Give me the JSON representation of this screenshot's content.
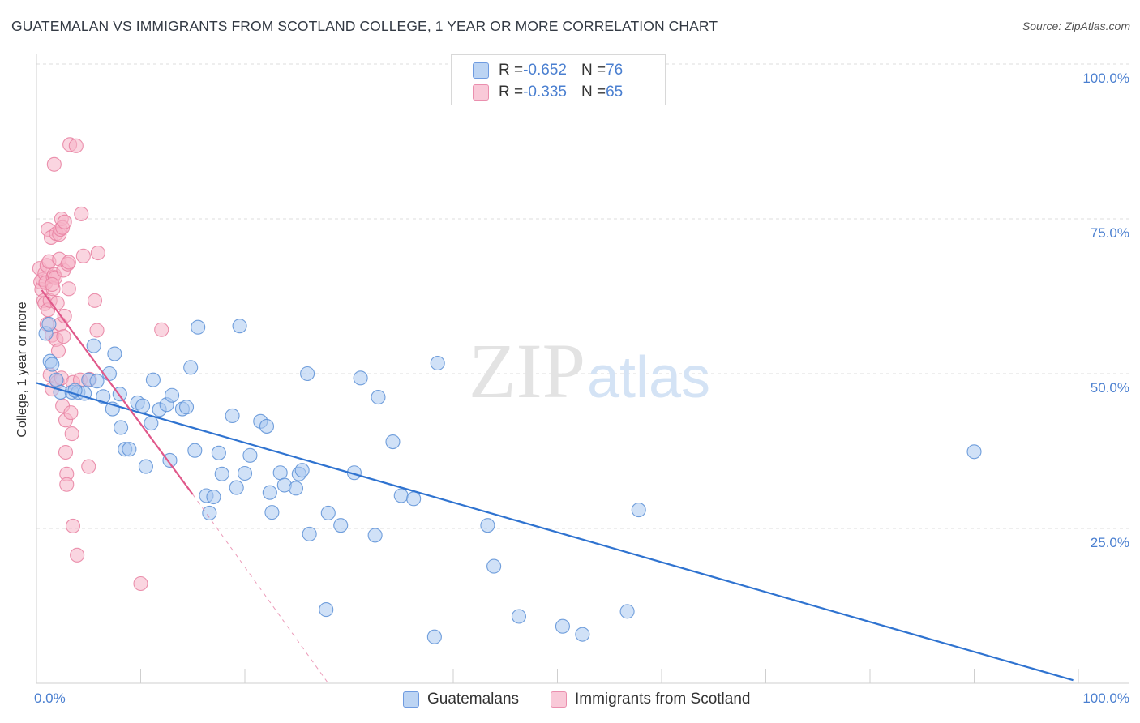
{
  "header": {
    "title": "GUATEMALAN VS IMMIGRANTS FROM SCOTLAND COLLEGE, 1 YEAR OR MORE CORRELATION CHART",
    "source": "Source: ZipAtlas.com"
  },
  "legend": {
    "blue": {
      "r_label": "R = ",
      "r_value": "-0.652",
      "n_label": "N = ",
      "n_value": "76"
    },
    "pink": {
      "r_label": "R = ",
      "r_value": "-0.335",
      "n_label": "N = ",
      "n_value": "65"
    }
  },
  "watermark": {
    "part1": "ZIP",
    "part2": "atlas"
  },
  "colors": {
    "blue_fill": "#a9c8f0",
    "blue_stroke": "#5b8fd6",
    "blue_line": "#2f73d0",
    "pink_fill": "#f5b3c7",
    "pink_stroke": "#e87fa0",
    "pink_line": "#e0588a",
    "axis_text": "#4a7fd0",
    "grid": "#dedede"
  },
  "chart_data": {
    "type": "scatter",
    "title": "GUATEMALAN VS IMMIGRANTS FROM SCOTLAND COLLEGE, 1 YEAR OR MORE CORRELATION CHART",
    "xlabel": "",
    "ylabel": "College, 1 year or more",
    "xlim": [
      0,
      100
    ],
    "ylim": [
      0,
      100
    ],
    "x_tick_labels": [
      "0.0%",
      "100.0%"
    ],
    "y_ticks": [
      25,
      50,
      75,
      100
    ],
    "y_tick_labels": [
      "25.0%",
      "50.0%",
      "75.0%",
      "100.0%"
    ],
    "grid": true,
    "legend_position": "bottom",
    "series": [
      {
        "name": "Guatemalans",
        "R": -0.652,
        "N": 76,
        "trend": {
          "x": [
            0,
            99.5
          ],
          "y": [
            48.5,
            0.5
          ],
          "dashed_extension": false
        },
        "points": [
          [
            0.9,
            56.5
          ],
          [
            1.2,
            58.0
          ],
          [
            1.3,
            52.0
          ],
          [
            1.5,
            51.5
          ],
          [
            1.9,
            49.0
          ],
          [
            2.3,
            47.0
          ],
          [
            3.4,
            47.0
          ],
          [
            4.0,
            47.0
          ],
          [
            4.6,
            46.8
          ],
          [
            5.0,
            49.0
          ],
          [
            5.5,
            54.5
          ],
          [
            5.8,
            48.8
          ],
          [
            6.4,
            46.3
          ],
          [
            7.0,
            50.0
          ],
          [
            7.3,
            44.3
          ],
          [
            7.5,
            53.2
          ],
          [
            8.0,
            46.7
          ],
          [
            8.1,
            41.3
          ],
          [
            8.5,
            37.8
          ],
          [
            8.9,
            37.8
          ],
          [
            9.7,
            45.3
          ],
          [
            10.2,
            44.8
          ],
          [
            10.5,
            35.0
          ],
          [
            11.0,
            42.0
          ],
          [
            11.2,
            49.0
          ],
          [
            11.8,
            44.2
          ],
          [
            12.5,
            45.0
          ],
          [
            12.8,
            36.0
          ],
          [
            13.0,
            46.5
          ],
          [
            14.0,
            44.3
          ],
          [
            14.4,
            44.6
          ],
          [
            14.8,
            51.0
          ],
          [
            15.2,
            37.6
          ],
          [
            15.5,
            57.5
          ],
          [
            16.3,
            30.3
          ],
          [
            16.6,
            27.5
          ],
          [
            17.0,
            30.1
          ],
          [
            17.5,
            37.2
          ],
          [
            17.8,
            33.8
          ],
          [
            18.8,
            43.2
          ],
          [
            19.2,
            31.6
          ],
          [
            19.5,
            57.7
          ],
          [
            20.0,
            33.9
          ],
          [
            20.5,
            36.8
          ],
          [
            21.5,
            42.3
          ],
          [
            22.1,
            41.5
          ],
          [
            22.4,
            30.8
          ],
          [
            22.6,
            27.6
          ],
          [
            23.4,
            34.0
          ],
          [
            23.8,
            32.0
          ],
          [
            24.9,
            31.5
          ],
          [
            25.2,
            33.8
          ],
          [
            25.5,
            34.4
          ],
          [
            26.0,
            50.0
          ],
          [
            26.2,
            24.1
          ],
          [
            27.8,
            11.9
          ],
          [
            28.0,
            27.5
          ],
          [
            29.2,
            25.5
          ],
          [
            30.5,
            34.0
          ],
          [
            31.1,
            49.3
          ],
          [
            32.5,
            23.9
          ],
          [
            32.8,
            46.2
          ],
          [
            34.2,
            39.0
          ],
          [
            35.0,
            30.3
          ],
          [
            36.2,
            29.8
          ],
          [
            38.2,
            7.5
          ],
          [
            38.5,
            51.7
          ],
          [
            43.3,
            25.5
          ],
          [
            43.9,
            18.9
          ],
          [
            46.3,
            10.8
          ],
          [
            50.5,
            9.2
          ],
          [
            52.4,
            7.9
          ],
          [
            56.7,
            11.6
          ],
          [
            57.8,
            28.0
          ],
          [
            90.0,
            37.4
          ],
          [
            3.7,
            47.3
          ]
        ]
      },
      {
        "name": "Immigrants from Scotland",
        "R": -0.335,
        "N": 65,
        "trend": {
          "x": [
            0.5,
            15.0
          ],
          "y": [
            63.5,
            30.5
          ],
          "dashed_to": [
            28.0,
            0.0
          ]
        },
        "points": [
          [
            0.3,
            67.0
          ],
          [
            0.4,
            64.8
          ],
          [
            0.5,
            63.6
          ],
          [
            0.6,
            65.2
          ],
          [
            0.7,
            61.8
          ],
          [
            0.8,
            61.3
          ],
          [
            0.8,
            66.2
          ],
          [
            0.9,
            64.7
          ],
          [
            1.0,
            67.5
          ],
          [
            1.0,
            58.0
          ],
          [
            1.1,
            60.3
          ],
          [
            1.1,
            73.3
          ],
          [
            1.2,
            68.1
          ],
          [
            1.3,
            61.8
          ],
          [
            1.3,
            49.8
          ],
          [
            1.4,
            72.0
          ],
          [
            1.5,
            47.5
          ],
          [
            1.5,
            56.2
          ],
          [
            1.6,
            65.6
          ],
          [
            1.6,
            63.7
          ],
          [
            1.7,
            66.0
          ],
          [
            1.7,
            83.8
          ],
          [
            1.8,
            65.5
          ],
          [
            1.9,
            72.6
          ],
          [
            1.9,
            55.5
          ],
          [
            2.0,
            48.7
          ],
          [
            2.0,
            61.4
          ],
          [
            2.1,
            53.7
          ],
          [
            2.2,
            72.5
          ],
          [
            2.2,
            68.5
          ],
          [
            2.3,
            58.0
          ],
          [
            2.3,
            73.3
          ],
          [
            2.4,
            75.0
          ],
          [
            2.4,
            49.3
          ],
          [
            2.5,
            73.6
          ],
          [
            2.5,
            44.8
          ],
          [
            2.6,
            56.0
          ],
          [
            2.6,
            66.7
          ],
          [
            2.7,
            74.5
          ],
          [
            2.7,
            59.3
          ],
          [
            2.8,
            42.5
          ],
          [
            2.8,
            37.3
          ],
          [
            2.9,
            33.8
          ],
          [
            2.9,
            32.1
          ],
          [
            3.0,
            67.7
          ],
          [
            3.1,
            68.0
          ],
          [
            3.1,
            63.7
          ],
          [
            3.2,
            87.0
          ],
          [
            3.3,
            43.7
          ],
          [
            3.4,
            40.3
          ],
          [
            3.5,
            25.4
          ],
          [
            3.5,
            48.6
          ],
          [
            3.8,
            86.8
          ],
          [
            3.9,
            20.7
          ],
          [
            4.2,
            49.0
          ],
          [
            4.3,
            75.8
          ],
          [
            4.5,
            69.0
          ],
          [
            5.0,
            35.0
          ],
          [
            5.1,
            49.1
          ],
          [
            5.6,
            61.8
          ],
          [
            5.8,
            57.0
          ],
          [
            5.9,
            69.5
          ],
          [
            10.0,
            16.1
          ],
          [
            12.0,
            57.1
          ],
          [
            1.5,
            64.4
          ]
        ]
      }
    ]
  }
}
